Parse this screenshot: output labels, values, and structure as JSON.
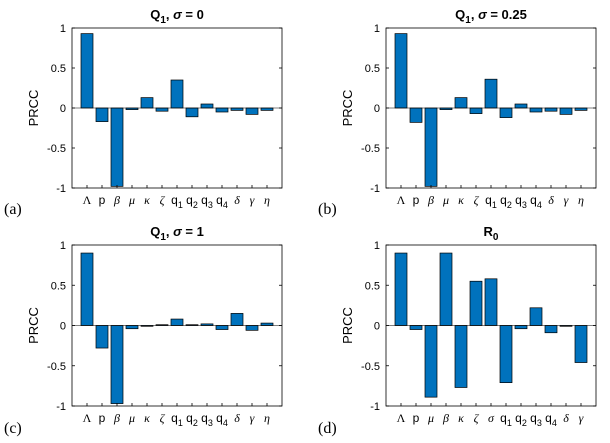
{
  "chart_data": [
    {
      "type": "bar",
      "panel_label": "(a)",
      "title_main": "Q",
      "title_sub": "1",
      "title_rest": ", ",
      "title_sym": "σ",
      "title_val": " = 0",
      "ylabel": "PRCC",
      "ylim": [
        -1,
        1
      ],
      "yticks": [
        "1",
        "0.5",
        "0",
        "-0.5",
        "-1"
      ],
      "categories": [
        {
          "main": "Λ",
          "sub": "",
          "style": "serif"
        },
        {
          "main": "p",
          "sub": "",
          "style": "sans"
        },
        {
          "main": "β",
          "sub": "",
          "style": "serif"
        },
        {
          "main": "μ",
          "sub": "",
          "style": "serif"
        },
        {
          "main": "κ",
          "sub": "",
          "style": "serif"
        },
        {
          "main": "ζ",
          "sub": "",
          "style": "serif"
        },
        {
          "main": "q",
          "sub": "1",
          "style": "sans"
        },
        {
          "main": "q",
          "sub": "2",
          "style": "sans"
        },
        {
          "main": "q",
          "sub": "3",
          "style": "sans"
        },
        {
          "main": "q",
          "sub": "4",
          "style": "sans"
        },
        {
          "main": "δ",
          "sub": "",
          "style": "serif"
        },
        {
          "main": "γ",
          "sub": "",
          "style": "serif"
        },
        {
          "main": "η",
          "sub": "",
          "style": "serif"
        }
      ],
      "values": [
        0.93,
        -0.17,
        -0.98,
        -0.02,
        0.13,
        -0.04,
        0.35,
        -0.11,
        0.05,
        -0.05,
        -0.03,
        -0.08,
        -0.03
      ]
    },
    {
      "type": "bar",
      "panel_label": "(b)",
      "title_main": "Q",
      "title_sub": "1",
      "title_rest": ", ",
      "title_sym": "σ",
      "title_val": " = 0.25",
      "ylabel": "PRCC",
      "ylim": [
        -1,
        1
      ],
      "yticks": [
        "1",
        "0.5",
        "0",
        "-0.5",
        "-1"
      ],
      "categories": [
        {
          "main": "Λ",
          "sub": "",
          "style": "serif"
        },
        {
          "main": "p",
          "sub": "",
          "style": "sans"
        },
        {
          "main": "β",
          "sub": "",
          "style": "serif"
        },
        {
          "main": "μ",
          "sub": "",
          "style": "serif"
        },
        {
          "main": "κ",
          "sub": "",
          "style": "serif"
        },
        {
          "main": "ζ",
          "sub": "",
          "style": "serif"
        },
        {
          "main": "q",
          "sub": "1",
          "style": "sans"
        },
        {
          "main": "q",
          "sub": "2",
          "style": "sans"
        },
        {
          "main": "q",
          "sub": "3",
          "style": "sans"
        },
        {
          "main": "q",
          "sub": "4",
          "style": "sans"
        },
        {
          "main": "δ",
          "sub": "",
          "style": "serif"
        },
        {
          "main": "γ",
          "sub": "",
          "style": "serif"
        },
        {
          "main": "η",
          "sub": "",
          "style": "serif"
        }
      ],
      "values": [
        0.93,
        -0.18,
        -0.98,
        -0.02,
        0.13,
        -0.07,
        0.36,
        -0.12,
        0.05,
        -0.05,
        -0.04,
        -0.08,
        -0.03
      ]
    },
    {
      "type": "bar",
      "panel_label": "(c)",
      "title_main": "Q",
      "title_sub": "1",
      "title_rest": ", ",
      "title_sym": "σ",
      "title_val": " = 1",
      "ylabel": "PRCC",
      "ylim": [
        -1,
        1
      ],
      "yticks": [
        "1",
        "0.5",
        "0",
        "-0.5",
        "-1"
      ],
      "categories": [
        {
          "main": "Λ",
          "sub": "",
          "style": "serif"
        },
        {
          "main": "p",
          "sub": "",
          "style": "sans"
        },
        {
          "main": "β",
          "sub": "",
          "style": "serif"
        },
        {
          "main": "μ",
          "sub": "",
          "style": "serif"
        },
        {
          "main": "κ",
          "sub": "",
          "style": "serif"
        },
        {
          "main": "ζ",
          "sub": "",
          "style": "serif"
        },
        {
          "main": "q",
          "sub": "1",
          "style": "sans"
        },
        {
          "main": "q",
          "sub": "2",
          "style": "sans"
        },
        {
          "main": "q",
          "sub": "3",
          "style": "sans"
        },
        {
          "main": "q",
          "sub": "4",
          "style": "sans"
        },
        {
          "main": "δ",
          "sub": "",
          "style": "serif"
        },
        {
          "main": "γ",
          "sub": "",
          "style": "serif"
        },
        {
          "main": "η",
          "sub": "",
          "style": "serif"
        }
      ],
      "values": [
        0.9,
        -0.28,
        -0.97,
        -0.04,
        -0.01,
        0.01,
        0.08,
        0.01,
        0.02,
        -0.05,
        0.15,
        -0.06,
        0.03
      ]
    },
    {
      "type": "bar",
      "panel_label": "(d)",
      "title_main": "R",
      "title_sub": "0",
      "title_rest": "",
      "title_sym": "",
      "title_val": "",
      "ylabel": "PRCC",
      "ylim": [
        -1,
        1
      ],
      "yticks": [
        "1",
        "0.5",
        "0",
        "-0.5",
        "-1"
      ],
      "categories": [
        {
          "main": "Λ",
          "sub": "",
          "style": "serif"
        },
        {
          "main": "p",
          "sub": "",
          "style": "sans"
        },
        {
          "main": "μ",
          "sub": "",
          "style": "serif"
        },
        {
          "main": "β",
          "sub": "",
          "style": "serif"
        },
        {
          "main": "κ",
          "sub": "",
          "style": "serif"
        },
        {
          "main": "ζ",
          "sub": "",
          "style": "serif"
        },
        {
          "main": "σ",
          "sub": "",
          "style": "serif"
        },
        {
          "main": "q",
          "sub": "1",
          "style": "sans"
        },
        {
          "main": "q",
          "sub": "2",
          "style": "sans"
        },
        {
          "main": "q",
          "sub": "3",
          "style": "sans"
        },
        {
          "main": "q",
          "sub": "4",
          "style": "sans"
        },
        {
          "main": "δ",
          "sub": "",
          "style": "serif"
        },
        {
          "main": "γ",
          "sub": "",
          "style": "serif"
        }
      ],
      "values": [
        0.9,
        -0.05,
        -0.89,
        0.9,
        -0.77,
        0.55,
        0.58,
        -0.71,
        -0.04,
        0.22,
        -0.09,
        -0.01,
        -0.46
      ]
    }
  ],
  "colors": {
    "bar": "#0072bd",
    "bar_edge": "#000000",
    "axis": "#000000"
  }
}
